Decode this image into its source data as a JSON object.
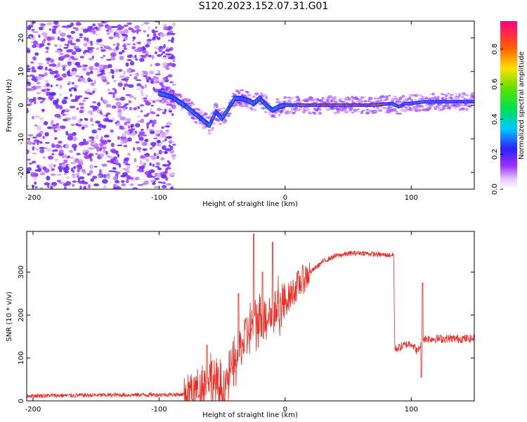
{
  "title": "S120.2023.152.07.31.G01",
  "colors": {
    "background": "#ffffff",
    "snr_line": "#ee2a22",
    "spectrogram_noise": "#8a2be2",
    "spectrogram_band": "#00e0d0"
  },
  "chart_data": [
    {
      "type": "heatmap",
      "name": "spectrogram",
      "xlabel": "Height of straight line (km)",
      "ylabel": "Frequency (Hz)",
      "xlim": [
        -205,
        150
      ],
      "ylim": [
        -25,
        25
      ],
      "xticks": [
        -200,
        -100,
        0,
        100
      ],
      "yticks": [
        -20,
        -10,
        0,
        10,
        20
      ],
      "colorbar": {
        "label": "Normalized spectral amplitude",
        "range": [
          0,
          0.96
        ],
        "ticks": [
          0.0,
          0.2,
          0.4,
          0.6,
          0.8
        ],
        "colormap": "rainbow"
      },
      "frequency_track": {
        "x": [
          -100,
          -90,
          -80,
          -70,
          -60,
          -55,
          -50,
          -45,
          -40,
          -35,
          -30,
          -25,
          -20,
          -15,
          -10,
          -5,
          0,
          10,
          30,
          50,
          70,
          85,
          90,
          95,
          100,
          110,
          130,
          150
        ],
        "y": [
          3.5,
          2.5,
          0,
          -3,
          -6,
          -2,
          -4,
          -1,
          2,
          2,
          1.5,
          0.5,
          2,
          0,
          -1.5,
          -0.5,
          0,
          0,
          0,
          0,
          0,
          0.5,
          -0.5,
          0.5,
          0.5,
          1,
          1,
          1
        ]
      },
      "high_amplitude_segment": [
        10,
        80
      ]
    },
    {
      "type": "line",
      "name": "snr",
      "xlabel": "Height of straight line (km)",
      "ylabel": "SNR (10 * v/v)",
      "xlim": [
        -205,
        150
      ],
      "ylim": [
        0,
        395
      ],
      "xticks": [
        -200,
        -100,
        0,
        100
      ],
      "yticks": [
        0,
        100,
        200,
        300
      ],
      "envelope": {
        "x": [
          -205,
          -80,
          -70,
          -60,
          -50,
          -40,
          -30,
          -20,
          -10,
          0,
          10,
          20,
          30,
          40,
          50,
          60,
          70,
          80,
          86,
          87,
          95,
          100,
          105,
          110,
          120,
          150
        ],
        "y": [
          12,
          15,
          25,
          60,
          20,
          90,
          160,
          190,
          210,
          230,
          270,
          300,
          325,
          338,
          343,
          345,
          342,
          340,
          340,
          120,
          130,
          135,
          115,
          145,
          145,
          145
        ]
      },
      "spikes": [
        {
          "x": -62,
          "y": 130
        },
        {
          "x": -37,
          "y": 250
        },
        {
          "x": -25,
          "y": 390
        },
        {
          "x": -18,
          "y": 300
        },
        {
          "x": -10,
          "y": 370
        },
        {
          "x": 109,
          "y": 275
        },
        {
          "x": 108,
          "y": 55
        }
      ]
    }
  ]
}
